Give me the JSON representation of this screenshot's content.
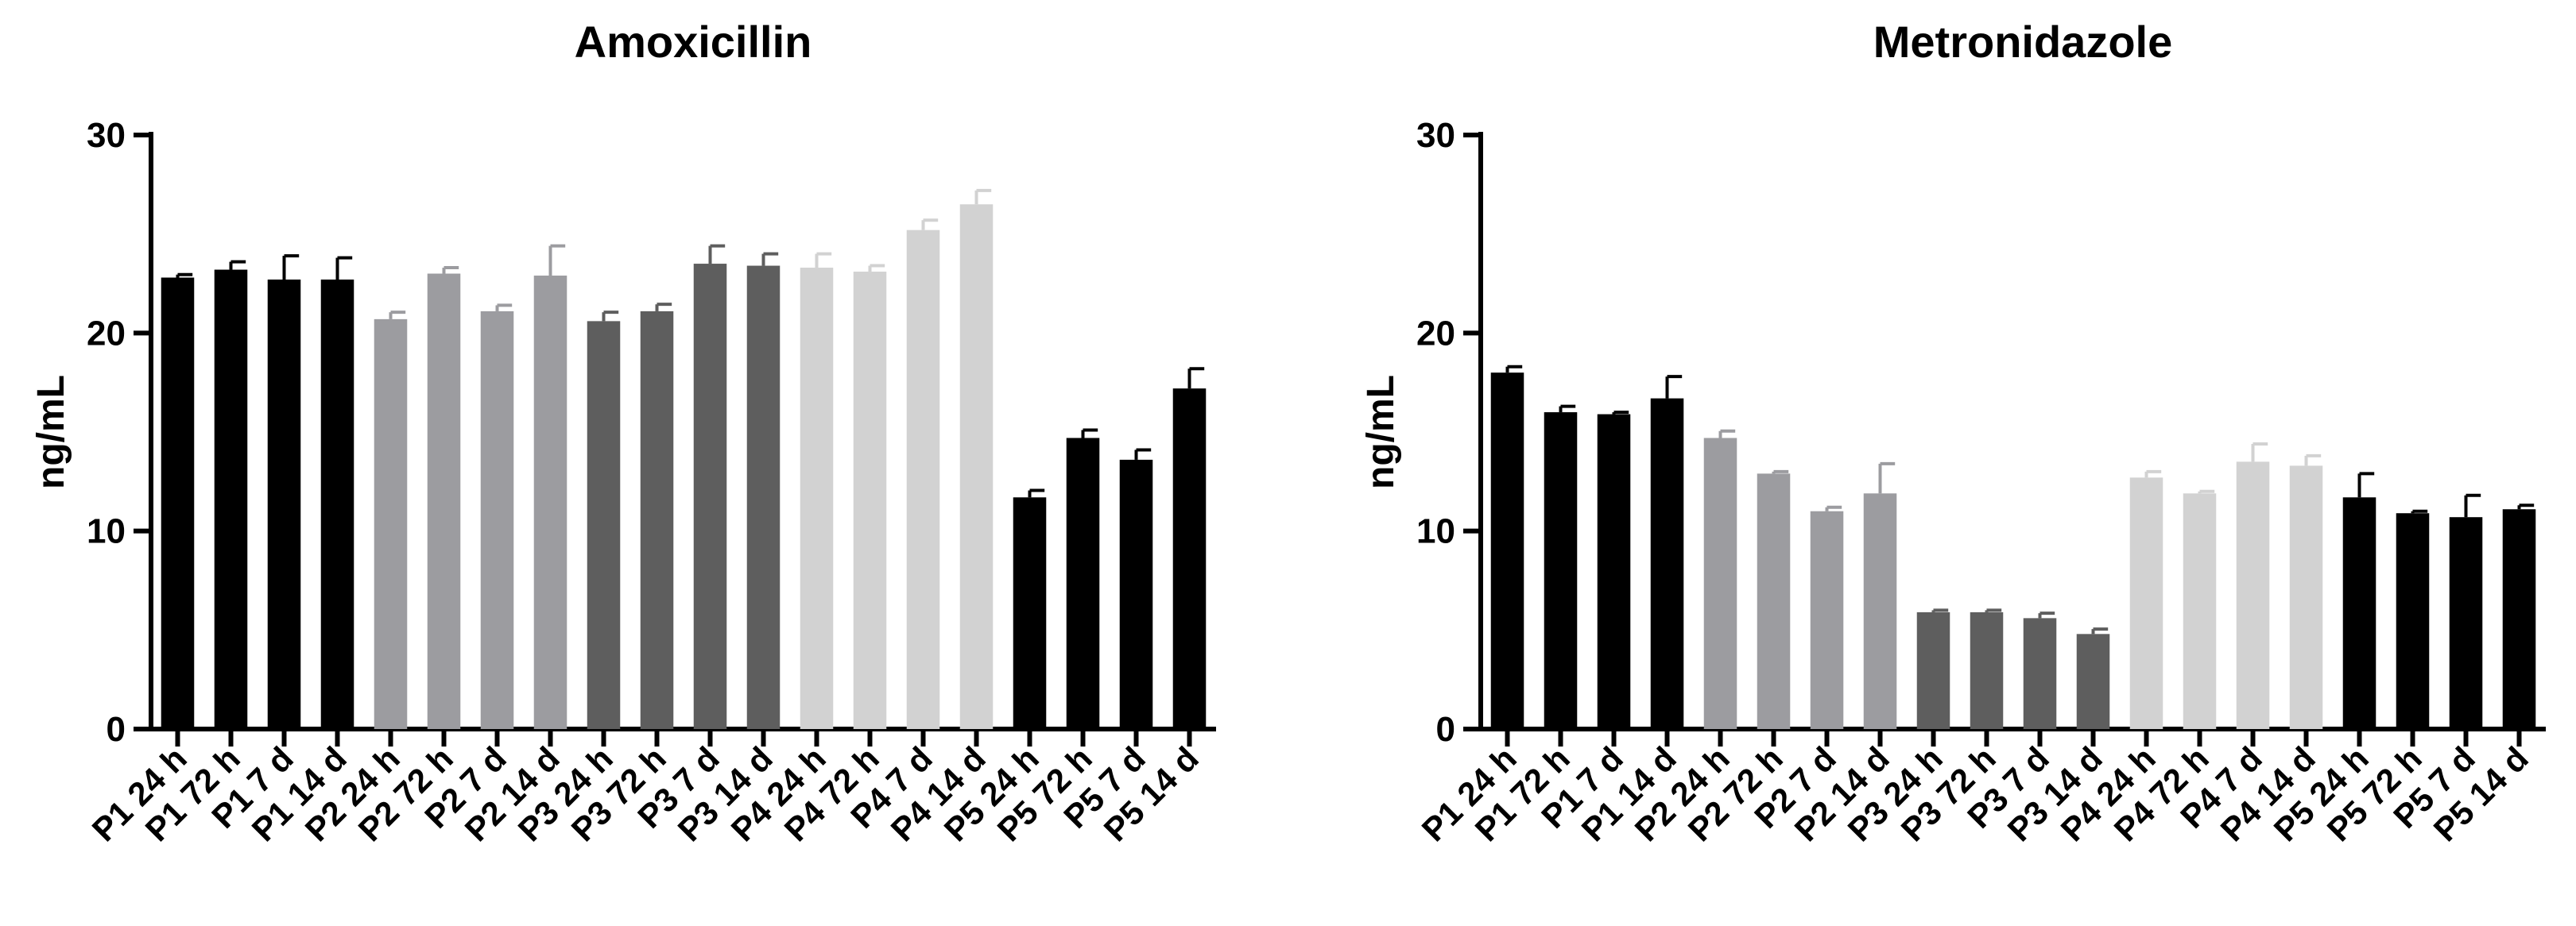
{
  "chart_data": [
    {
      "type": "bar",
      "title": "Amoxicillin",
      "ylabel": "ng/mL",
      "xlabel": "",
      "ylim": [
        0,
        30
      ],
      "yticks": [
        0,
        10,
        20,
        30
      ],
      "categories": [
        "P1 24 h",
        "P1 72 h",
        "P1 7 d",
        "P1 14 d",
        "P2 24 h",
        "P2 72 h",
        "P2 7 d",
        "P2 14 d",
        "P3 24 h",
        "P3 72 h",
        "P3 7 d",
        "P3 14 d",
        "P4 24 h",
        "P4 72 h",
        "P4 7 d",
        "P4 14 d",
        "P5 24 h",
        "P5 72 h",
        "P5 7 d",
        "P5 14 d"
      ],
      "values": [
        22.8,
        23.2,
        22.7,
        22.7,
        20.7,
        23.0,
        21.1,
        22.9,
        20.6,
        21.1,
        23.5,
        23.4,
        23.3,
        23.1,
        25.2,
        26.5,
        11.7,
        14.7,
        13.6,
        17.2
      ],
      "errors": [
        0.15,
        0.4,
        1.2,
        1.1,
        0.35,
        0.3,
        0.3,
        1.5,
        0.45,
        0.35,
        0.9,
        0.6,
        0.7,
        0.3,
        0.5,
        0.7,
        0.35,
        0.4,
        0.5,
        1.0
      ],
      "colors": [
        "#000000",
        "#000000",
        "#000000",
        "#000000",
        "#9c9ca0",
        "#9c9ca0",
        "#9c9ca0",
        "#9c9ca0",
        "#5e5e5e",
        "#5e5e5e",
        "#5e5e5e",
        "#5e5e5e",
        "#d2d2d2",
        "#d2d2d2",
        "#d2d2d2",
        "#d2d2d2",
        "#000000",
        "#000000",
        "#000000",
        "#000000"
      ],
      "grid": false,
      "error_bar_type": "upper"
    },
    {
      "type": "bar",
      "title": "Metronidazole",
      "ylabel": "ng/mL",
      "xlabel": "",
      "ylim": [
        0,
        30
      ],
      "yticks": [
        0,
        10,
        20,
        30
      ],
      "categories": [
        "P1 24 h",
        "P1 72 h",
        "P1 7 d",
        "P1 14 d",
        "P2 24 h",
        "P2 72 h",
        "P2 7 d",
        "P2 14 d",
        "P3 24 h",
        "P3 72 h",
        "P3 7 d",
        "P3 14 d",
        "P4 24 h",
        "P4 72 h",
        "P4 7 d",
        "P4 14 d",
        "P5 24 h",
        "P5 72 h",
        "P5 7 d",
        "P5 14 d"
      ],
      "values": [
        18.0,
        16.0,
        15.9,
        16.7,
        14.7,
        12.9,
        11.0,
        11.9,
        5.9,
        5.9,
        5.6,
        4.8,
        12.7,
        11.9,
        13.5,
        13.3,
        11.7,
        10.9,
        10.7,
        11.1
      ],
      "errors": [
        0.3,
        0.3,
        0.1,
        1.1,
        0.35,
        0.1,
        0.2,
        1.5,
        0.1,
        0.1,
        0.25,
        0.25,
        0.3,
        0.1,
        0.9,
        0.5,
        1.2,
        0.1,
        1.1,
        0.2
      ],
      "colors": [
        "#000000",
        "#000000",
        "#000000",
        "#000000",
        "#9c9ca0",
        "#9c9ca0",
        "#9c9ca0",
        "#9c9ca0",
        "#5e5e5e",
        "#5e5e5e",
        "#5e5e5e",
        "#5e5e5e",
        "#d2d2d2",
        "#d2d2d2",
        "#d2d2d2",
        "#d2d2d2",
        "#000000",
        "#000000",
        "#000000",
        "#000000"
      ],
      "grid": false,
      "error_bar_type": "upper"
    }
  ]
}
